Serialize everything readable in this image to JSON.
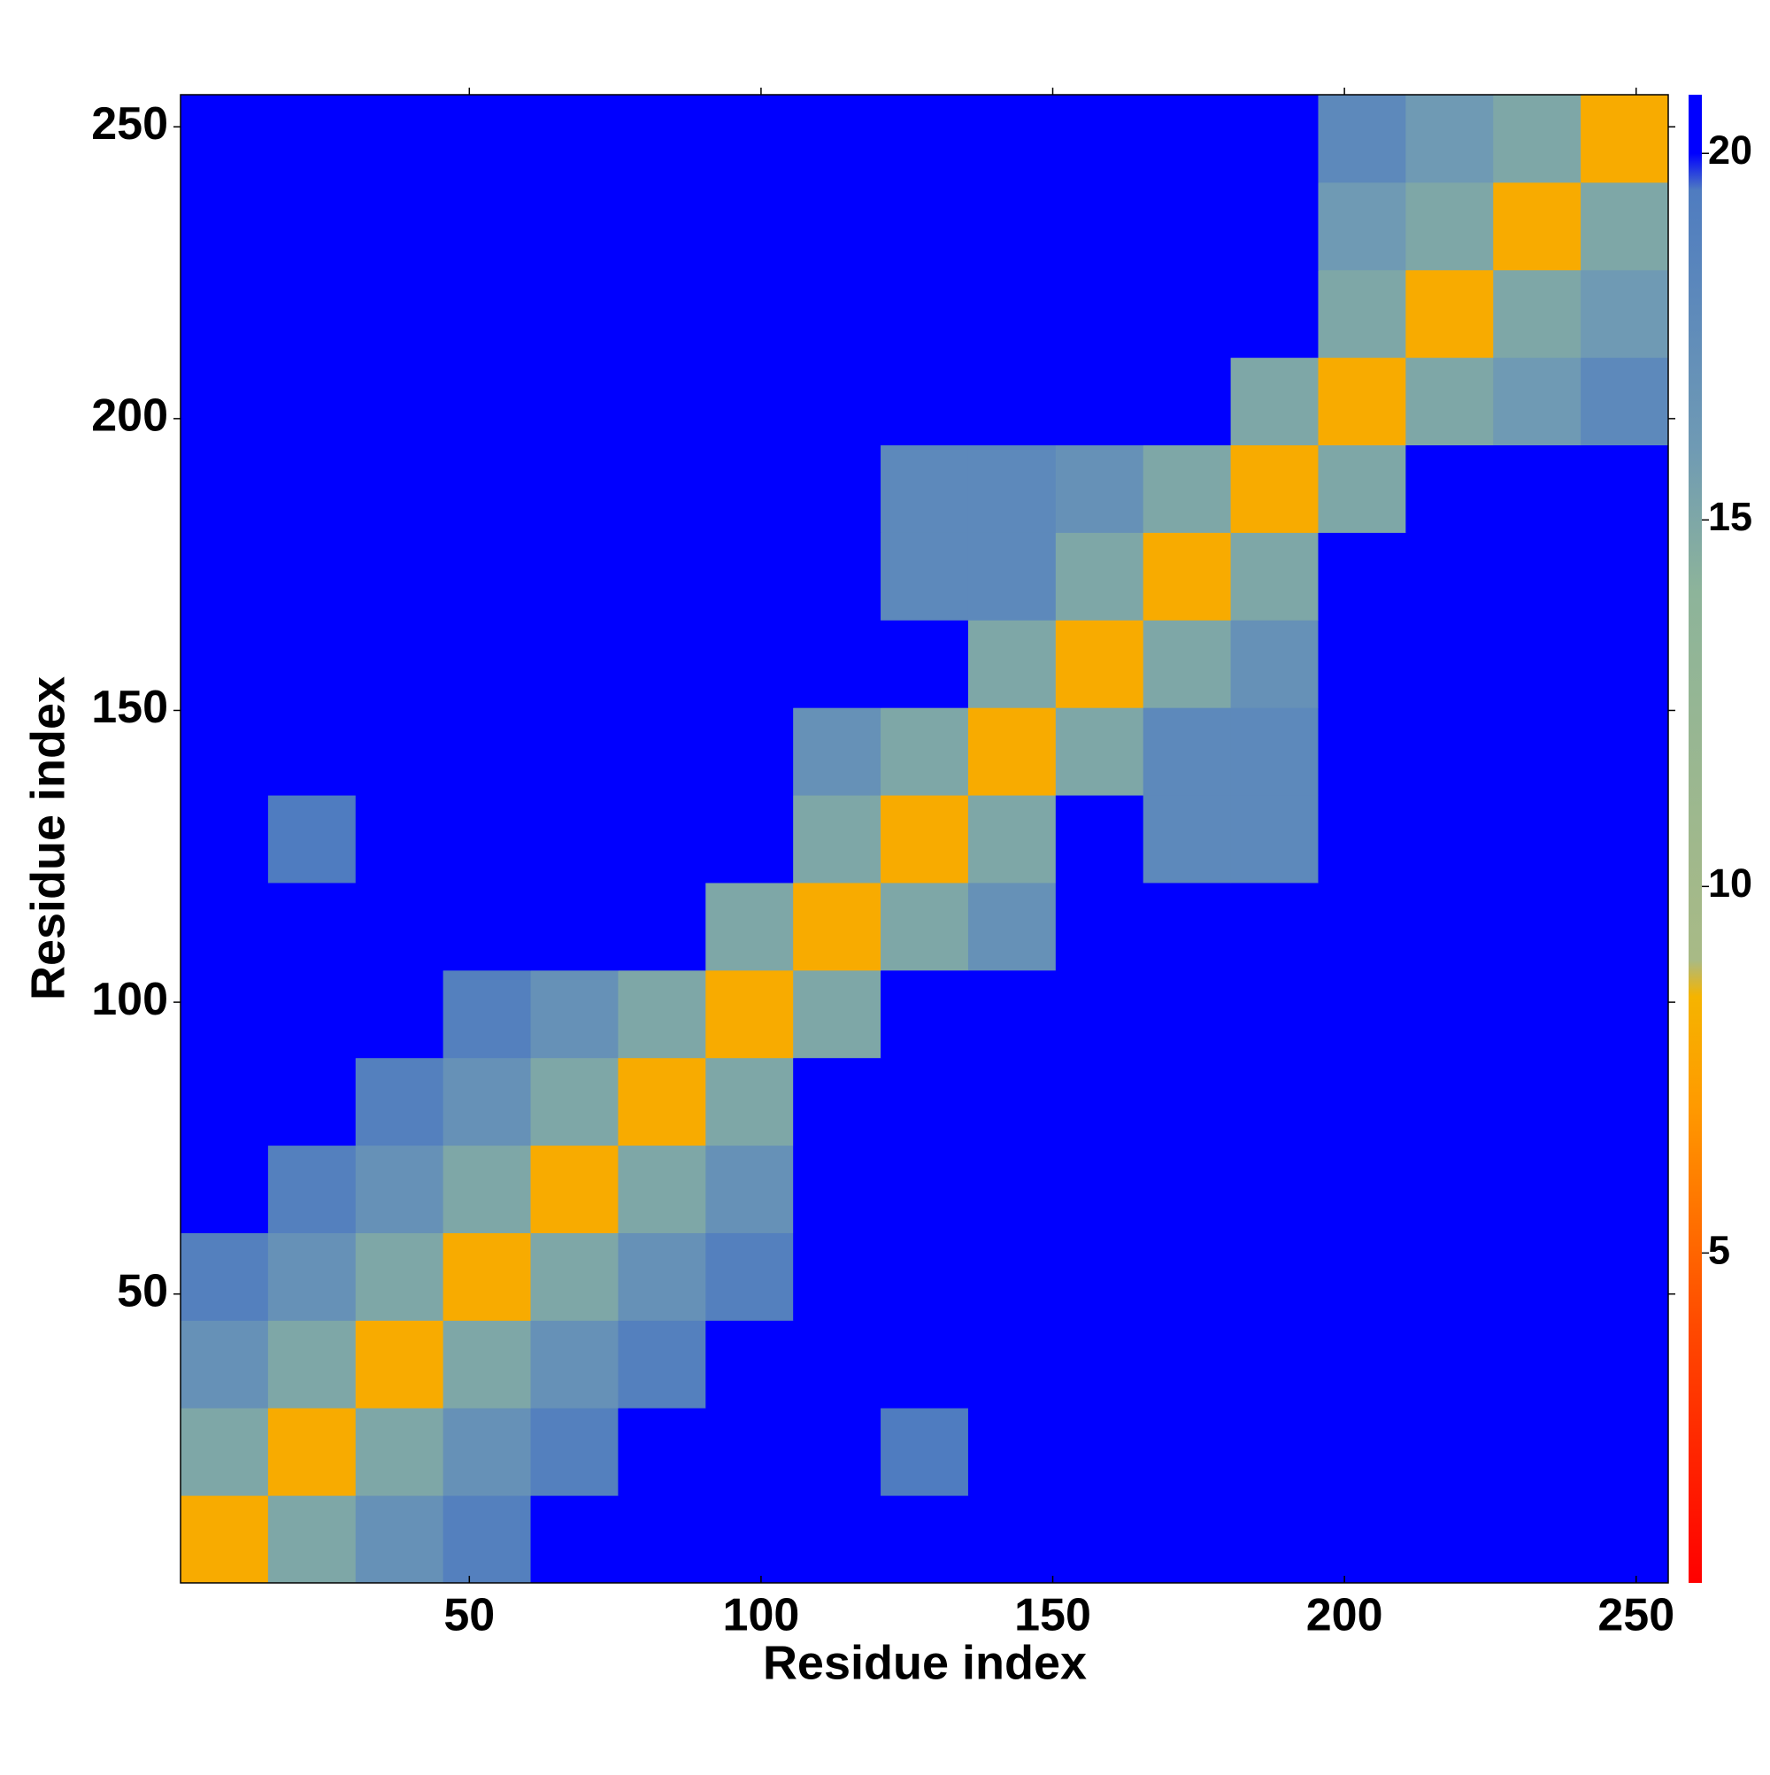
{
  "chart_data": {
    "type": "heatmap",
    "x_label": "Residue index",
    "y_label": "Residue index",
    "x": [
      0.5,
      15.5,
      30.5,
      45.5,
      60.5,
      75.5,
      90.5,
      105.5,
      120.5,
      135.5,
      150.5,
      165.5,
      180.5,
      195.5,
      210.5,
      225.5,
      240.5,
      255.5
    ],
    "y": [
      0.5,
      15.5,
      30.5,
      45.5,
      60.5,
      75.5,
      90.5,
      105.5,
      120.5,
      135.5,
      150.5,
      165.5,
      180.5,
      195.5,
      210.5,
      225.5,
      240.5,
      255.5
    ],
    "values": [
      [
        8,
        15,
        17,
        19,
        20,
        21,
        21,
        21,
        21,
        21,
        21,
        21,
        21,
        21,
        21,
        21,
        20.5
      ],
      [
        15,
        8,
        15,
        17,
        19,
        20,
        21,
        21,
        19.5,
        21,
        21,
        21,
        21,
        21,
        21,
        21,
        20
      ],
      [
        17,
        15,
        8,
        15,
        17,
        19,
        20,
        21,
        21,
        21,
        21,
        21,
        21,
        21,
        21,
        21,
        21
      ],
      [
        19,
        17,
        15,
        8,
        15,
        17,
        19,
        21,
        21,
        21,
        21,
        21,
        21,
        21,
        21,
        21,
        21
      ],
      [
        20,
        19,
        17,
        15,
        8,
        15,
        17,
        21,
        21,
        21,
        21,
        21,
        21,
        21,
        21,
        21,
        21
      ],
      [
        21,
        20,
        19,
        17,
        15,
        8,
        15,
        20,
        21,
        21,
        21,
        21,
        21,
        21,
        21,
        21,
        21
      ],
      [
        21,
        21,
        20,
        19,
        17,
        15,
        8,
        15,
        20,
        21,
        21,
        21,
        21,
        21,
        21,
        21,
        21
      ],
      [
        21,
        21,
        21,
        21,
        21,
        20,
        15,
        8,
        15,
        17,
        21,
        21,
        21,
        21,
        21,
        21,
        21
      ],
      [
        21,
        19.5,
        21,
        21,
        21,
        21,
        20,
        15,
        8,
        15,
        20,
        18,
        18,
        21,
        21,
        21,
        21
      ],
      [
        21,
        21,
        21,
        21,
        21,
        21,
        21,
        17,
        15,
        8,
        15,
        18,
        18,
        21,
        21,
        21,
        21
      ],
      [
        21,
        21,
        21,
        21,
        21,
        21,
        21,
        21,
        20,
        15,
        8,
        15,
        17,
        21,
        21,
        21,
        21
      ],
      [
        21,
        21,
        21,
        21,
        21,
        21,
        21,
        21,
        18,
        18,
        15,
        8,
        15,
        20,
        21,
        21,
        21
      ],
      [
        21,
        21,
        21,
        21,
        21,
        21,
        21,
        21,
        18,
        18,
        17,
        15,
        8,
        15,
        20,
        21,
        21
      ],
      [
        21,
        21,
        21,
        21,
        21,
        21,
        21,
        21,
        21,
        21,
        21,
        20,
        15,
        8,
        15,
        16,
        18
      ],
      [
        21,
        21,
        21,
        21,
        21,
        21,
        21,
        21,
        21,
        21,
        21,
        21,
        20,
        15,
        8,
        15,
        16
      ],
      [
        21,
        21,
        21,
        21,
        21,
        21,
        21,
        21,
        21,
        21,
        21,
        21,
        21,
        16,
        15,
        8,
        15
      ],
      [
        20.5,
        20,
        21,
        21,
        21,
        21,
        21,
        21,
        21,
        21,
        21,
        21,
        21,
        18,
        16,
        15,
        8
      ]
    ],
    "xlim": [
      0.5,
      255.5
    ],
    "ylim": [
      0.5,
      255.5
    ],
    "xticks": [
      50,
      100,
      150,
      200,
      250
    ],
    "yticks": [
      50,
      100,
      150,
      200,
      250
    ],
    "zlim": [
      0.5,
      20.8
    ],
    "colorbar_ticks": [
      5,
      10,
      15,
      20
    ],
    "colorscale": [
      {
        "value": 0.5,
        "color": "#ff0000"
      },
      {
        "value": 4,
        "color": "#ff4a00"
      },
      {
        "value": 7,
        "color": "#ff9a00"
      },
      {
        "value": 8.5,
        "color": "#f5b400"
      },
      {
        "value": 9,
        "color": "#a8ba86"
      },
      {
        "value": 14,
        "color": "#8db49a"
      },
      {
        "value": 16,
        "color": "#6f9ab4"
      },
      {
        "value": 19.5,
        "color": "#4f7cc0"
      },
      {
        "value": 20,
        "color": "#0000ff"
      }
    ]
  }
}
